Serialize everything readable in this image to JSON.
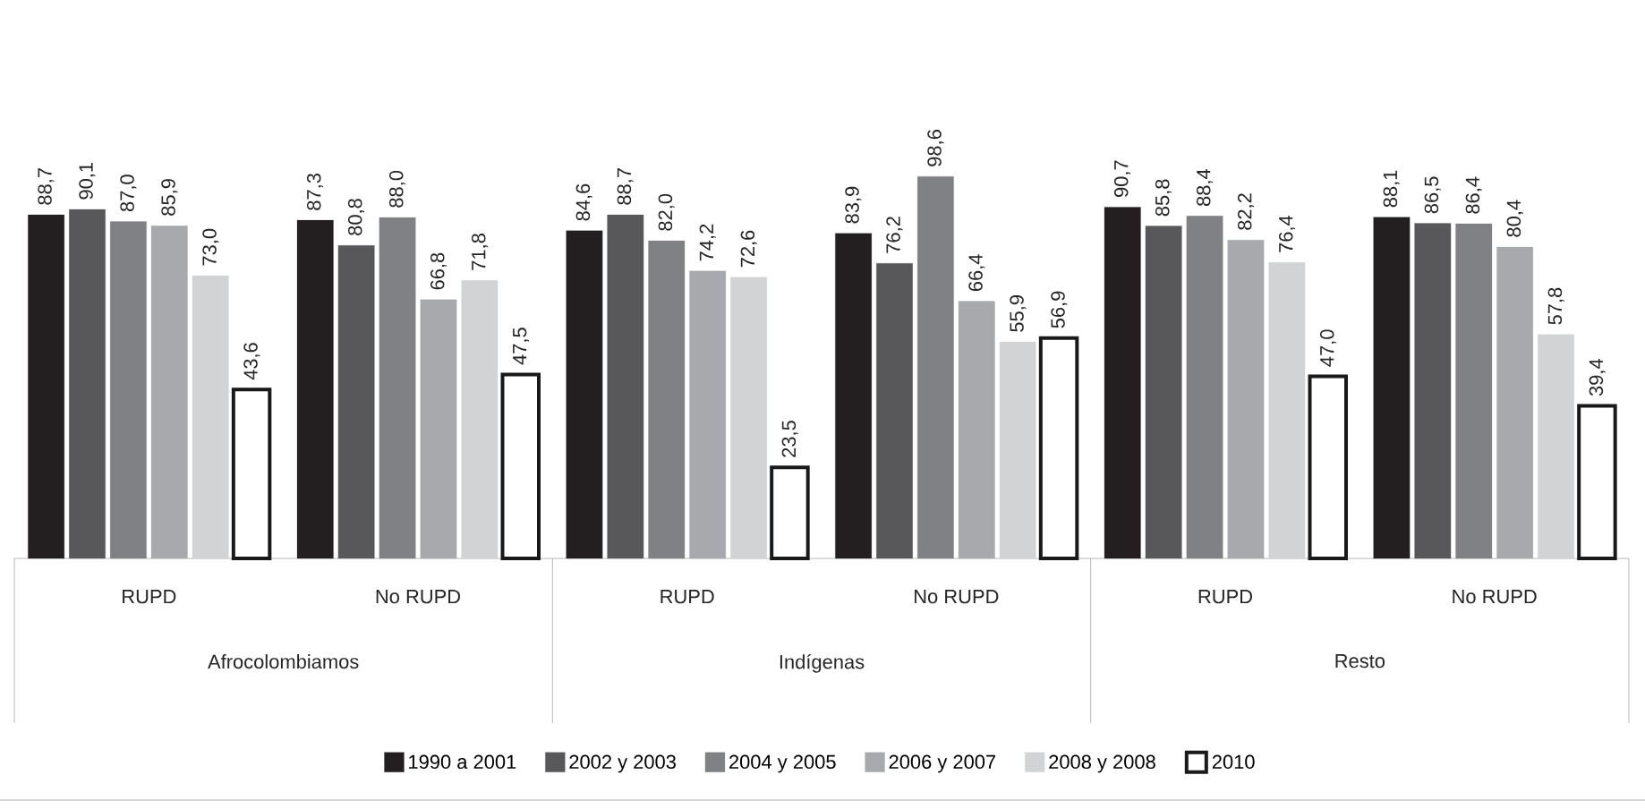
{
  "chart_data": {
    "type": "bar",
    "categories": [
      "RUPD",
      "No RUPD",
      "RUPD",
      "No RUPD",
      "RUPD",
      "No RUPD"
    ],
    "annotations": [
      "Afrocolombiamos",
      "Indígenas",
      "Resto"
    ],
    "tick_labels": "x",
    "legend": "bottom",
    "series": [
      {
        "name": "1990 a 2001",
        "color": "#231f20",
        "values": [
          88.7,
          87.3,
          84.6,
          83.9,
          90.7,
          88.1
        ],
        "value_labels": [
          "88,7",
          "87,3",
          "84,6",
          "83,9",
          "90,7",
          "88,1"
        ]
      },
      {
        "name": "2002 y 2003",
        "color": "#58585a",
        "values": [
          90.1,
          80.8,
          88.7,
          76.2,
          85.8,
          86.5
        ],
        "value_labels": [
          "90,1",
          "80,8",
          "88,7",
          "76,2",
          "85,8",
          "86,5"
        ]
      },
      {
        "name": "2004 y 2005",
        "color": "#808184",
        "values": [
          87.0,
          88.0,
          82.0,
          98.6,
          88.4,
          86.4
        ],
        "value_labels": [
          "87,0",
          "88,0",
          "82,0",
          "98,6",
          "88,4",
          "86,4"
        ]
      },
      {
        "name": "2006 y 2007",
        "color": "#a7a9ac",
        "values": [
          85.9,
          66.8,
          74.2,
          66.4,
          82.2,
          80.4
        ],
        "value_labels": [
          "85,9",
          "66,8",
          "74,2",
          "66,4",
          "82,2",
          "80,4"
        ]
      },
      {
        "name": "2008 y 2008",
        "color": "#d1d3d4",
        "values": [
          73.0,
          71.8,
          72.6,
          55.9,
          76.4,
          57.8
        ],
        "value_labels": [
          "73,0",
          "71,8",
          "72,6",
          "55,9",
          "76,4",
          "57,8"
        ]
      },
      {
        "name": "2010",
        "color": "#ffffff",
        "values": [
          43.6,
          47.5,
          23.5,
          56.9,
          47.0,
          39.4
        ],
        "value_labels": [
          "43,6",
          "47,5",
          "23,5",
          "56,9",
          "47,0",
          "39,4"
        ]
      }
    ]
  }
}
